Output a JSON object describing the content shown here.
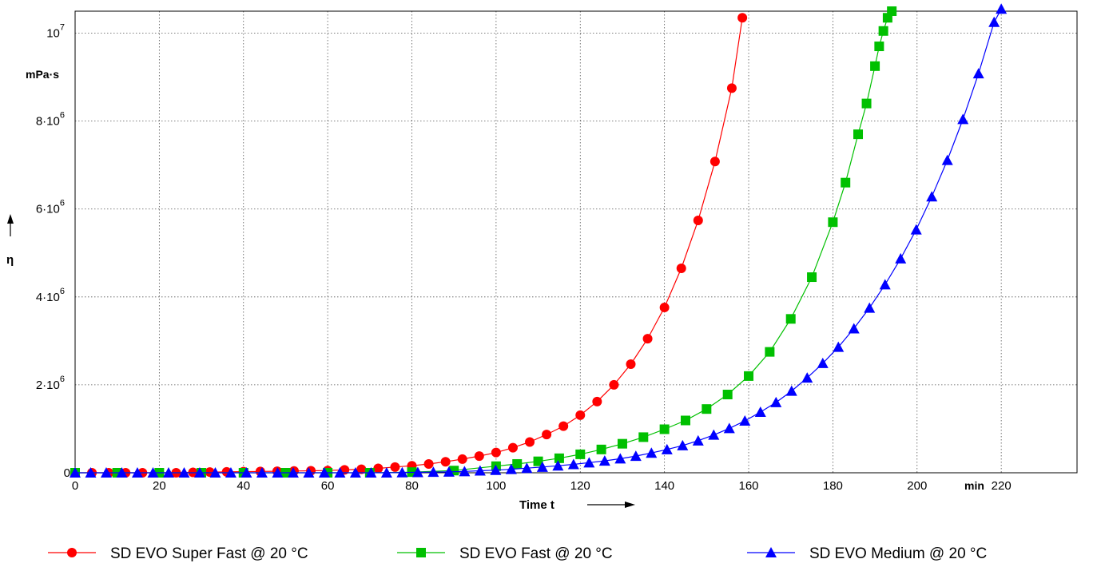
{
  "chart_data": {
    "type": "line",
    "title": "",
    "xlabel": "Time t",
    "xunit": "min",
    "ylabel": "η",
    "yunit": "mPa·s",
    "xlim": [
      0,
      238
    ],
    "ylim": [
      0,
      10500000
    ],
    "grid": true,
    "legend_position": "bottom",
    "x_ticks": [
      {
        "value": 0,
        "label": "0"
      },
      {
        "value": 20,
        "label": "20"
      },
      {
        "value": 40,
        "label": "40"
      },
      {
        "value": 60,
        "label": "60"
      },
      {
        "value": 80,
        "label": "80"
      },
      {
        "value": 100,
        "label": "100"
      },
      {
        "value": 120,
        "label": "120"
      },
      {
        "value": 140,
        "label": "140"
      },
      {
        "value": 160,
        "label": "160"
      },
      {
        "value": 180,
        "label": "180"
      },
      {
        "value": 200,
        "label": "200"
      },
      {
        "value": 220,
        "label": "220"
      }
    ],
    "y_ticks": [
      {
        "value": 0,
        "mantissa": "0",
        "exponent": ""
      },
      {
        "value": 2000000,
        "mantissa": "2·10",
        "exponent": "6"
      },
      {
        "value": 4000000,
        "mantissa": "4·10",
        "exponent": "6"
      },
      {
        "value": 6000000,
        "mantissa": "6·10",
        "exponent": "6"
      },
      {
        "value": 8000000,
        "mantissa": "8·10",
        "exponent": "6"
      },
      {
        "value": 10000000,
        "mantissa": "10",
        "exponent": "7"
      }
    ],
    "series": [
      {
        "name": "SD EVO Super Fast  @  20 °C",
        "color": "#ff0000",
        "marker": "circle",
        "x": [
          0,
          4,
          8,
          12,
          16,
          20,
          24,
          28,
          32,
          36,
          40,
          44,
          48,
          52,
          56,
          60,
          64,
          68,
          72,
          76,
          80,
          84,
          88,
          92,
          96,
          100,
          104,
          108,
          112,
          116,
          120,
          124,
          128,
          132,
          136,
          140,
          144,
          148,
          152,
          156,
          158.5
        ],
        "y": [
          0,
          0,
          0,
          0,
          0,
          0,
          0,
          10000,
          15000,
          20000,
          25000,
          30000,
          35000,
          40000,
          45000,
          50000,
          65000,
          80000,
          100000,
          130000,
          160000,
          200000,
          250000,
          310000,
          380000,
          460000,
          570000,
          700000,
          870000,
          1060000,
          1310000,
          1620000,
          2000000,
          2470000,
          3050000,
          3760000,
          4650000,
          5740000,
          7080000,
          8750000,
          10350000
        ]
      },
      {
        "name": "SD EVO Fast  @  20 °C",
        "color": "#00c000",
        "marker": "square",
        "x": [
          0,
          10,
          20,
          30,
          40,
          50,
          60,
          70,
          80,
          90,
          100,
          105,
          110,
          115,
          120,
          125,
          130,
          135,
          140,
          145,
          150,
          155,
          160,
          165,
          170,
          175,
          180,
          183,
          186,
          188,
          190,
          191,
          192,
          193,
          194
        ],
        "y": [
          0,
          0,
          0,
          0,
          0,
          0,
          0,
          0,
          15000,
          50000,
          150000,
          200000,
          260000,
          330000,
          420000,
          530000,
          660000,
          810000,
          990000,
          1190000,
          1450000,
          1780000,
          2200000,
          2750000,
          3500000,
          4450000,
          5700000,
          6600000,
          7700000,
          8400000,
          9250000,
          9700000,
          10050000,
          10350000,
          10500000
        ]
      },
      {
        "name": "SD EVO Medium  @  20 °C",
        "color": "#0000ff",
        "marker": "triangle",
        "x": [
          0,
          3.7,
          7.4,
          11.1,
          14.8,
          18.5,
          22.2,
          25.9,
          29.6,
          33.3,
          37,
          40.7,
          44.4,
          48.1,
          51.8,
          55.5,
          59.2,
          62.9,
          66.6,
          70.3,
          74,
          77.7,
          81.4,
          85.1,
          88.8,
          92.5,
          96.2,
          99.9,
          103.6,
          107.3,
          111,
          114.7,
          118.4,
          122.1,
          125.8,
          129.5,
          133.2,
          136.9,
          140.6,
          144.3,
          148,
          151.7,
          155.4,
          159.1,
          162.8,
          166.5,
          170.2,
          173.9,
          177.6,
          181.3,
          185,
          188.7,
          192.4,
          196.1,
          199.8,
          203.5,
          207.2,
          210.9,
          214.6,
          218.3,
          220
        ],
        "y": [
          0,
          0,
          0,
          0,
          0,
          0,
          0,
          0,
          0,
          0,
          0,
          0,
          0,
          0,
          0,
          0,
          0,
          0,
          0,
          0,
          0,
          5000,
          10000,
          15000,
          20000,
          30000,
          45000,
          60000,
          80000,
          105000,
          130000,
          160000,
          190000,
          230000,
          270000,
          320000,
          380000,
          450000,
          530000,
          620000,
          730000,
          860000,
          1010000,
          1180000,
          1380000,
          1600000,
          1860000,
          2160000,
          2490000,
          2860000,
          3280000,
          3750000,
          4280000,
          4870000,
          5530000,
          6280000,
          7110000,
          8040000,
          9080000,
          10250000,
          10550000
        ]
      }
    ]
  }
}
